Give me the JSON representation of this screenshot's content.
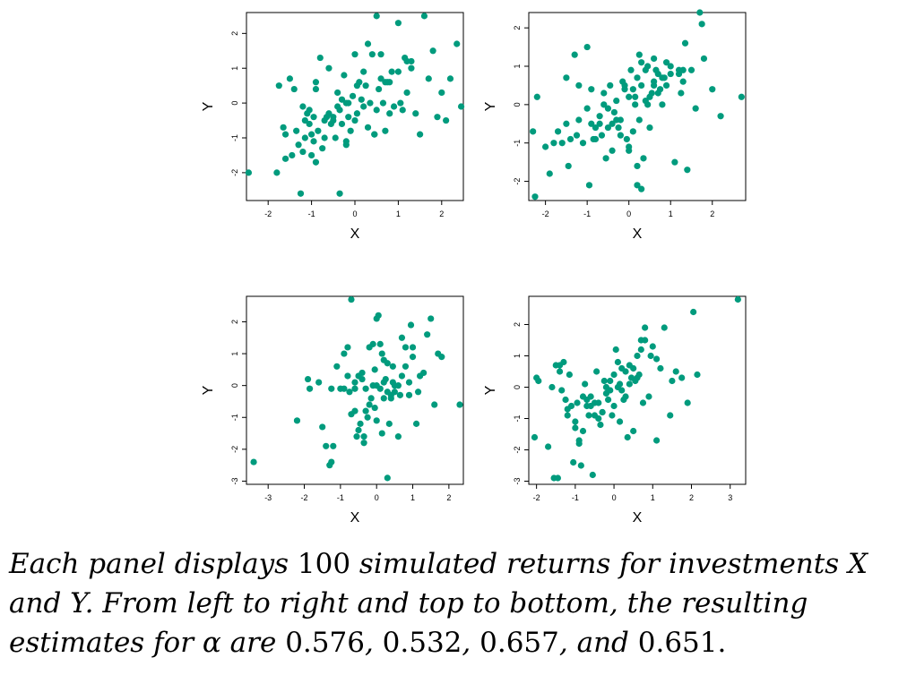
{
  "colors": {
    "point": "#009B7D",
    "axis": "#000000",
    "background": "#ffffff"
  },
  "chart_data": [
    {
      "type": "scatter",
      "xlabel": "X",
      "ylabel": "Y",
      "xlim": [
        -2.5,
        2.5
      ],
      "ylim": [
        -2.8,
        2.6
      ],
      "xticks": [
        -2,
        -1,
        0,
        1,
        2
      ],
      "yticks": [
        -2,
        -1,
        0,
        1,
        2
      ],
      "x": [
        -2.45,
        -1.8,
        -1.75,
        -1.65,
        -1.6,
        -1.5,
        -1.45,
        -1.35,
        -1.3,
        -1.25,
        -1.2,
        -1.15,
        -1.15,
        -1.1,
        -1.05,
        -1.0,
        -1.0,
        -0.95,
        -0.95,
        -0.9,
        -0.9,
        -0.85,
        -0.8,
        -0.75,
        -0.7,
        -0.65,
        -0.6,
        -0.55,
        -0.5,
        -0.45,
        -0.4,
        -0.35,
        -0.35,
        -0.3,
        -0.3,
        -0.25,
        -0.2,
        -0.2,
        -0.15,
        -0.1,
        -0.05,
        0.0,
        0.05,
        0.05,
        0.1,
        0.15,
        0.2,
        0.25,
        0.3,
        0.35,
        0.4,
        0.45,
        0.5,
        0.5,
        0.55,
        0.6,
        0.65,
        0.7,
        0.75,
        0.8,
        0.85,
        0.9,
        1.0,
        1.05,
        1.1,
        1.15,
        1.2,
        1.3,
        1.4,
        1.5,
        1.6,
        1.7,
        1.8,
        1.9,
        2.0,
        2.1,
        2.2,
        2.35,
        2.45,
        -1.2,
        -0.4,
        -0.9,
        -0.6,
        -1.4,
        0.0,
        0.6,
        1.0,
        -0.2,
        0.3,
        -0.7,
        -1.6,
        0.2,
        0.8,
        1.3,
        -0.5,
        -1.05,
        0.45,
        -0.15,
        0.7,
        1.2
      ],
      "y": [
        -2.0,
        -2.0,
        0.5,
        -0.7,
        -0.9,
        0.7,
        -1.5,
        -0.8,
        -1.2,
        -2.6,
        -0.1,
        -1.0,
        -0.5,
        -0.3,
        -0.6,
        -0.9,
        -1.5,
        -1.1,
        -0.4,
        -1.7,
        0.6,
        -0.8,
        1.3,
        -1.3,
        -0.5,
        -0.4,
        -0.3,
        -0.6,
        -0.4,
        -1.0,
        0.3,
        -0.2,
        -2.6,
        0.1,
        -0.6,
        0.8,
        0.0,
        -1.2,
        -0.4,
        -0.8,
        0.2,
        -0.5,
        0.5,
        -0.3,
        0.6,
        0.1,
        -0.1,
        0.5,
        1.7,
        0.0,
        1.4,
        -0.9,
        -0.2,
        2.5,
        0.4,
        1.4,
        0.0,
        -0.8,
        0.6,
        -0.3,
        0.9,
        -0.1,
        0.9,
        0.0,
        -0.2,
        1.3,
        0.3,
        1.0,
        -0.3,
        -0.9,
        2.5,
        0.7,
        1.5,
        -0.4,
        0.3,
        -0.5,
        0.7,
        1.7,
        -0.1,
        -1.4,
        -0.1,
        0.4,
        1.0,
        0.4,
        1.4,
        0.7,
        2.3,
        -1.1,
        -0.7,
        -1.0,
        -1.6,
        0.9,
        0.6,
        1.2,
        -0.5,
        -0.2,
        -0.9,
        0.0,
        0.6,
        1.2
      ]
    },
    {
      "type": "scatter",
      "xlabel": "X",
      "ylabel": "Y",
      "xlim": [
        -2.4,
        2.8
      ],
      "ylim": [
        -2.5,
        2.4
      ],
      "xticks": [
        -2,
        -1,
        0,
        1,
        2
      ],
      "yticks": [
        -2,
        -1,
        0,
        1,
        2
      ],
      "x": [
        -2.3,
        -2.25,
        -2.2,
        -2.0,
        -1.9,
        -1.8,
        -1.7,
        -1.6,
        -1.5,
        -1.45,
        -1.4,
        -1.3,
        -1.25,
        -1.2,
        -1.1,
        -1.0,
        -0.95,
        -0.9,
        -0.85,
        -0.8,
        -0.7,
        -0.65,
        -0.6,
        -0.55,
        -0.5,
        -0.45,
        -0.4,
        -0.35,
        -0.3,
        -0.25,
        -0.2,
        -0.15,
        -0.1,
        -0.05,
        0.0,
        0.0,
        0.05,
        0.1,
        0.15,
        0.2,
        0.25,
        0.3,
        0.35,
        0.4,
        0.45,
        0.5,
        0.55,
        0.6,
        0.65,
        0.7,
        0.75,
        0.8,
        0.85,
        0.9,
        1.0,
        1.1,
        1.2,
        1.25,
        1.3,
        1.35,
        1.4,
        1.5,
        1.6,
        1.7,
        1.8,
        2.0,
        2.2,
        2.7,
        -1.0,
        -0.3,
        0.2,
        0.6,
        -0.7,
        0.1,
        0.4,
        -0.5,
        0.3,
        -0.2,
        0.8,
        1.3,
        -1.5,
        -0.9,
        0.0,
        0.5,
        1.0,
        -0.4,
        0.2,
        0.7,
        -0.1,
        0.3,
        -0.6,
        0.9,
        1.2,
        -1.2,
        0.15,
        0.45,
        -0.8,
        0.6,
        1.75,
        0.25
      ],
      "y": [
        -0.7,
        -2.4,
        0.2,
        -1.1,
        -1.8,
        -1.0,
        -0.7,
        -1.0,
        0.7,
        -1.6,
        -0.9,
        1.3,
        -0.8,
        -0.4,
        -1.0,
        1.5,
        -2.1,
        -0.5,
        -0.9,
        -0.6,
        -0.5,
        -0.8,
        0.0,
        -1.4,
        -0.1,
        0.5,
        -1.2,
        -0.2,
        0.1,
        -0.6,
        -0.4,
        0.6,
        0.4,
        -0.9,
        -1.1,
        -1.2,
        0.9,
        -0.7,
        0.0,
        -2.1,
        1.3,
        0.5,
        -1.4,
        0.9,
        0.0,
        0.2,
        0.3,
        0.6,
        0.9,
        0.8,
        0.4,
        0.0,
        0.7,
        1.1,
        1.0,
        -1.5,
        0.8,
        0.3,
        0.9,
        1.6,
        -1.7,
        0.9,
        -0.1,
        2.4,
        1.2,
        0.4,
        -0.3,
        0.2,
        -0.1,
        -0.4,
        0.7,
        0.5,
        -0.3,
        0.4,
        0.1,
        -0.6,
        1.1,
        -0.8,
        0.7,
        0.6,
        -0.5,
        0.4,
        0.2,
        -0.6,
        0.8,
        -0.5,
        -1.6,
        0.3,
        0.5,
        -2.2,
        0.3,
        0.5,
        0.9,
        0.5,
        0.2,
        1.0,
        -0.9,
        1.2,
        2.1,
        -0.4
      ]
    },
    {
      "type": "scatter",
      "xlabel": "X",
      "ylabel": "Y",
      "xlim": [
        -3.6,
        2.4
      ],
      "ylim": [
        -3.1,
        2.8
      ],
      "xticks": [
        -3,
        -2,
        -1,
        0,
        1,
        2
      ],
      "yticks": [
        -3,
        -2,
        -1,
        0,
        1,
        2
      ],
      "x": [
        -3.4,
        -2.2,
        -1.9,
        -1.85,
        -1.6,
        -1.5,
        -1.4,
        -1.3,
        -1.25,
        -1.2,
        -1.1,
        -1.0,
        -0.9,
        -0.8,
        -0.75,
        -0.7,
        -0.6,
        -0.55,
        -0.5,
        -0.45,
        -0.4,
        -0.35,
        -0.3,
        -0.25,
        -0.2,
        -0.15,
        -0.1,
        -0.05,
        0.0,
        0.0,
        0.05,
        0.1,
        0.15,
        0.2,
        0.25,
        0.3,
        0.35,
        0.4,
        0.45,
        0.5,
        0.6,
        0.7,
        0.8,
        0.9,
        0.95,
        1.0,
        1.1,
        1.2,
        1.4,
        1.5,
        1.6,
        1.7,
        1.8,
        2.3,
        -0.7,
        0.3,
        -0.4,
        0.1,
        0.6,
        -0.2,
        0.8,
        -0.6,
        0.4,
        -0.3,
        0.2,
        0.7,
        -0.9,
        0.0,
        0.5,
        -0.5,
        1.0,
        -0.1,
        0.3,
        -0.8,
        0.9,
        1.3,
        -0.35,
        0.15,
        0.65,
        -0.05,
        0.45,
        -0.6,
        1.15,
        -1.25,
        0.2
      ],
      "y": [
        -2.4,
        -1.1,
        0.2,
        -0.1,
        0.1,
        -1.3,
        -1.9,
        -2.5,
        -2.4,
        -1.9,
        0.6,
        -0.1,
        1.0,
        1.2,
        -0.2,
        2.7,
        -0.1,
        -1.6,
        -1.4,
        -1.2,
        0.2,
        -1.8,
        -0.8,
        -1.0,
        1.2,
        -0.4,
        1.3,
        -0.7,
        2.1,
        0.0,
        2.2,
        -0.1,
        -1.5,
        0.1,
        0.2,
        -2.9,
        -1.2,
        -0.3,
        0.6,
        0.0,
        -1.6,
        1.5,
        1.2,
        0.1,
        1.9,
        0.9,
        -1.2,
        0.3,
        1.6,
        2.1,
        -0.6,
        1.0,
        0.9,
        -0.6,
        -0.9,
        -0.2,
        0.4,
        1.3,
        0.0,
        -0.6,
        0.6,
        0.1,
        -0.4,
        -0.1,
        0.8,
        0.3,
        -0.1,
        -1.1,
        -0.2,
        0.3,
        1.2,
        0.0,
        0.7,
        0.3,
        -0.3,
        0.4,
        -1.6,
        1.0,
        -0.3,
        0.5,
        0.1,
        -0.8,
        -0.2,
        -0.1,
        -0.4
      ]
    },
    {
      "type": "scatter",
      "xlabel": "X",
      "ylabel": "Y",
      "xlim": [
        -2.2,
        3.4
      ],
      "ylim": [
        -3.1,
        2.9
      ],
      "xticks": [
        -2,
        -1,
        0,
        1,
        2,
        3
      ],
      "yticks": [
        -3,
        -2,
        -1,
        0,
        1,
        2
      ],
      "x": [
        -2.05,
        -2.0,
        -1.95,
        -1.7,
        -1.6,
        -1.55,
        -1.5,
        -1.45,
        -1.4,
        -1.35,
        -1.3,
        -1.25,
        -1.2,
        -1.15,
        -1.1,
        -1.05,
        -1.0,
        -0.95,
        -0.9,
        -0.85,
        -0.8,
        -0.75,
        -0.7,
        -0.65,
        -0.6,
        -0.55,
        -0.5,
        -0.45,
        -0.4,
        -0.35,
        -0.3,
        -0.25,
        -0.2,
        -0.15,
        -0.1,
        -0.05,
        0.0,
        0.05,
        0.1,
        0.15,
        0.2,
        0.25,
        0.3,
        0.35,
        0.4,
        0.45,
        0.5,
        0.6,
        0.65,
        0.7,
        0.75,
        0.8,
        0.9,
        1.0,
        1.1,
        1.2,
        1.3,
        1.45,
        1.6,
        1.75,
        1.9,
        2.05,
        2.15,
        3.2,
        -0.6,
        0.1,
        -1.0,
        0.3,
        -0.3,
        0.8,
        -0.8,
        0.5,
        -0.4,
        0.0,
        -1.2,
        0.7,
        -0.2,
        0.2,
        1.1,
        -0.7,
        0.4,
        -0.9,
        0.6,
        0.95,
        -0.5,
        0.15,
        1.5,
        -1.4,
        0.55,
        -0.1
      ],
      "y": [
        -1.6,
        0.3,
        0.2,
        -1.9,
        0.0,
        -2.9,
        0.7,
        -2.9,
        0.5,
        -0.1,
        0.8,
        -0.4,
        -0.9,
        0.4,
        -0.6,
        -2.4,
        -1.3,
        -0.5,
        -1.8,
        -2.5,
        -1.4,
        0.1,
        -0.6,
        -0.9,
        -0.3,
        -2.8,
        -0.5,
        0.5,
        -1.0,
        -1.2,
        -0.8,
        0.2,
        0.0,
        -0.4,
        0.2,
        -0.9,
        -0.6,
        1.2,
        0.0,
        -1.1,
        0.6,
        -0.4,
        -0.3,
        -1.6,
        0.1,
        0.3,
        -1.4,
        1.0,
        0.4,
        1.5,
        -0.5,
        1.9,
        -0.3,
        1.3,
        -1.7,
        0.6,
        1.9,
        -0.9,
        0.5,
        0.3,
        -0.5,
        2.4,
        0.4,
        2.8,
        -0.6,
        0.8,
        -1.1,
        0.5,
        -0.8,
        1.5,
        -0.3,
        0.6,
        -0.5,
        0.4,
        -0.7,
        1.2,
        -0.2,
        -0.1,
        0.9,
        -0.4,
        0.7,
        -1.7,
        0.3,
        1.0,
        -0.9,
        0.1,
        0.2,
        0.7,
        0.2,
        -0.1
      ]
    }
  ],
  "caption": {
    "line1": {
      "a": "Each panel displays ",
      "n": "100",
      "b": " simulated returns for investments ",
      "v": "X"
    },
    "line2": {
      "a": "and ",
      "v": "Y",
      "b": ". From left to right and top to bottom, the resulting"
    },
    "line3": {
      "a": "estimates for ",
      "alpha": "α",
      "b": " are ",
      "v1": "0.576",
      "s1": ", ",
      "v2": "0.532",
      "s2": ", ",
      "v3": "0.657",
      "s3": ", ",
      "and": "and ",
      "v4": "0.651",
      "end": "."
    }
  }
}
